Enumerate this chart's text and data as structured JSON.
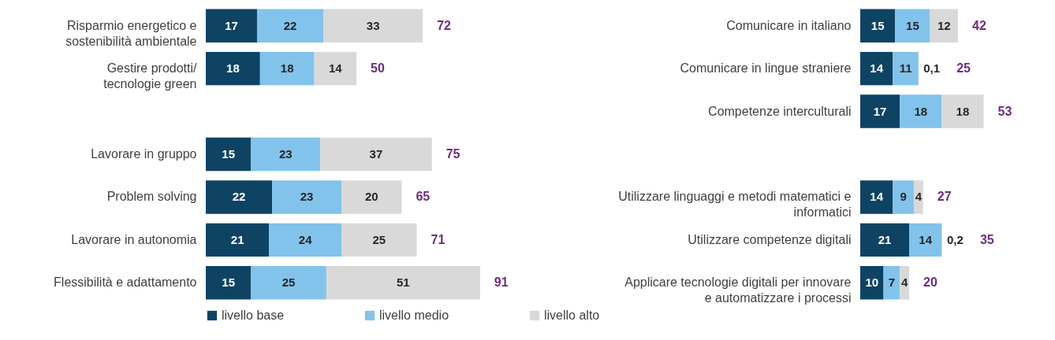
{
  "chart_data": [
    {
      "type": "bar",
      "orientation": "horizontal",
      "stacked": true,
      "legend": "bottom",
      "categories": [
        "Risparmio energetico e sostenibilità ambientale",
        "Gestire prodotti/ tecnologie green",
        null,
        "Lavorare in gruppo",
        "Problem solving",
        "Lavorare in autonomia",
        "Flessibilità e adattamento"
      ],
      "series": [
        {
          "name": "livello base",
          "color": "#0f4364",
          "values": [
            17,
            18,
            null,
            15,
            22,
            21,
            15
          ],
          "value_labels": [
            "17",
            "18",
            null,
            "15",
            "22",
            "21",
            "15"
          ]
        },
        {
          "name": "livello medio",
          "color": "#82c3ec",
          "values": [
            22,
            18,
            null,
            23,
            23,
            24,
            25
          ],
          "value_labels": [
            "22",
            "18",
            null,
            "23",
            "23",
            "24",
            "25"
          ]
        },
        {
          "name": "livello alto",
          "color": "#d9d9d9",
          "values": [
            33,
            14,
            null,
            37,
            20,
            25,
            51
          ],
          "value_labels": [
            "33",
            "14",
            null,
            "37",
            "20",
            "25",
            "51"
          ]
        }
      ],
      "totals": [
        "72",
        "50",
        null,
        "75",
        "65",
        "71",
        "91"
      ]
    },
    {
      "type": "bar",
      "orientation": "horizontal",
      "stacked": true,
      "legend": "bottom",
      "categories": [
        "Comunicare in italiano",
        "Comunicare in lingue straniere",
        "Competenze interculturali",
        null,
        "Utilizzare linguaggi e metodi matematici e informatici",
        "Utilizzare competenze digitali",
        "Applicare tecnologie digitali per innovare e automatizzare i processi"
      ],
      "series": [
        {
          "name": "livello base",
          "color": "#0f4364",
          "values": [
            15,
            14,
            17,
            null,
            14,
            21,
            10
          ],
          "value_labels": [
            "15",
            "14",
            "17",
            null,
            "14",
            "21",
            "10"
          ]
        },
        {
          "name": "livello medio",
          "color": "#82c3ec",
          "values": [
            15,
            11,
            18,
            null,
            9,
            14,
            7
          ],
          "value_labels": [
            "15",
            "11",
            "18",
            null,
            "9",
            "14",
            "7"
          ]
        },
        {
          "name": "livello alto",
          "color": "#d9d9d9",
          "values": [
            12,
            0.1,
            18,
            null,
            4,
            0.2,
            4
          ],
          "value_labels": [
            "12",
            "0,1",
            "18",
            null,
            "4",
            "0,2",
            "4"
          ]
        }
      ],
      "totals": [
        "42",
        "25",
        "53",
        null,
        "27",
        "35",
        "20"
      ]
    }
  ]
}
